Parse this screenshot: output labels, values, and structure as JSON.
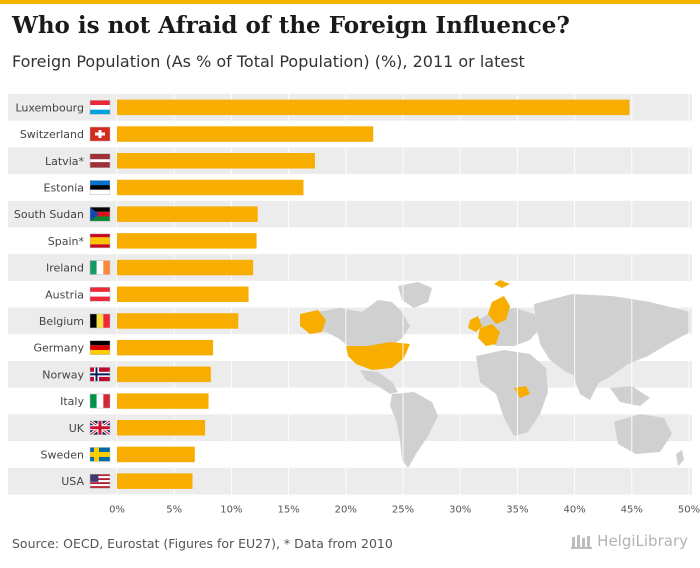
{
  "title": "Who is not Afraid of the Foreign Influence?",
  "subtitle": "Foreign Population (As % of Total Population) (%), 2011 or latest",
  "source": "Source: OECD, Eurostat (Figures for EU27), * Data from 2010",
  "brand": {
    "name": "HelgiLibrary"
  },
  "colors": {
    "bar": "#f7ae00",
    "stripe": "#ececec",
    "map_land": "#d0d0d0",
    "map_highlight": "#f7ae00",
    "accent": "#f6b300"
  },
  "chart_data": {
    "type": "bar",
    "orientation": "horizontal",
    "unit": "%",
    "xlim": [
      0,
      50
    ],
    "ticks": [
      "0%",
      "5%",
      "10%",
      "15%",
      "20%",
      "25%",
      "30%",
      "35%",
      "40%",
      "45%",
      "50%"
    ],
    "tick_values": [
      0,
      5,
      10,
      15,
      20,
      25,
      30,
      35,
      40,
      45,
      50
    ],
    "grid": true,
    "categories": [
      "Luxembourg",
      "Switzerland",
      "Latvia*",
      "Estonia",
      "South Sudan",
      "Spain*",
      "Ireland",
      "Austria",
      "Belgium",
      "Germany",
      "Norway",
      "Italy",
      "UK",
      "Sweden",
      "USA"
    ],
    "values": [
      44.8,
      22.4,
      17.3,
      16.3,
      12.3,
      12.2,
      11.9,
      11.5,
      10.6,
      8.4,
      8.2,
      8.0,
      7.7,
      6.8,
      6.6
    ],
    "flags": [
      "luxembourg-flag-icon",
      "switzerland-flag-icon",
      "latvia-flag-icon",
      "estonia-flag-icon",
      "south-sudan-flag-icon",
      "spain-flag-icon",
      "ireland-flag-icon",
      "austria-flag-icon",
      "belgium-flag-icon",
      "germany-flag-icon",
      "norway-flag-icon",
      "italy-flag-icon",
      "uk-flag-icon",
      "sweden-flag-icon",
      "usa-flag-icon"
    ]
  }
}
